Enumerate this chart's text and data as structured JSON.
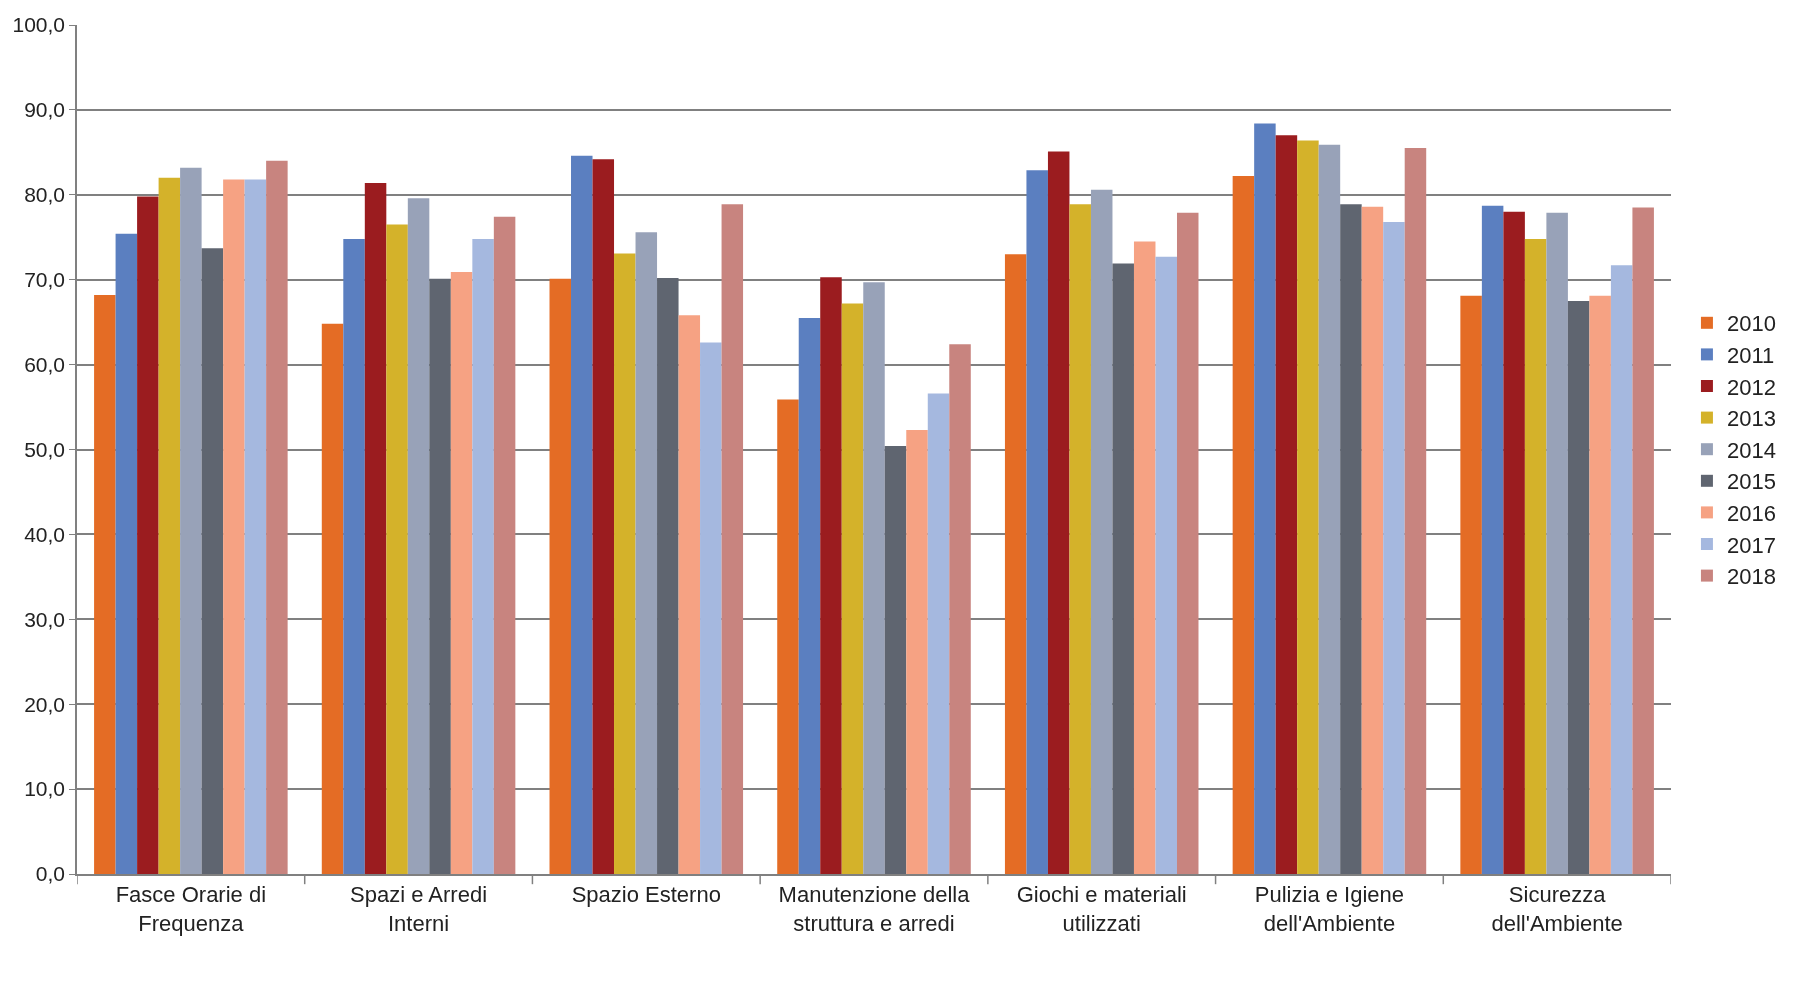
{
  "chart_data": {
    "type": "bar",
    "categories": [
      "Fasce Orarie di Frequenza",
      "Spazi e Arredi Interni",
      "Spazio Esterno",
      "Manutenzione della struttura e arredi",
      "Giochi e materiali utilizzati",
      "Pulizia e Igiene dell'Ambiente",
      "Sicurezza dell'Ambiente"
    ],
    "series": [
      {
        "name": "2010",
        "color": "#e46c25",
        "values": [
          68.2,
          64.8,
          70.1,
          55.9,
          73.0,
          82.2,
          68.1
        ]
      },
      {
        "name": "2011",
        "color": "#5b7fc0",
        "values": [
          75.4,
          74.8,
          84.6,
          65.5,
          82.9,
          88.4,
          78.7
        ]
      },
      {
        "name": "2012",
        "color": "#9b1c1f",
        "values": [
          79.8,
          81.4,
          84.2,
          70.3,
          85.1,
          87.0,
          78.0
        ]
      },
      {
        "name": "2013",
        "color": "#d4b22a",
        "values": [
          82.0,
          76.5,
          73.1,
          67.2,
          78.9,
          86.4,
          74.8
        ]
      },
      {
        "name": "2014",
        "color": "#98a2b8",
        "values": [
          83.2,
          79.6,
          75.6,
          69.7,
          80.6,
          85.9,
          77.9
        ]
      },
      {
        "name": "2015",
        "color": "#5f6570",
        "values": [
          73.7,
          70.1,
          70.2,
          50.4,
          71.9,
          78.9,
          67.5
        ]
      },
      {
        "name": "2016",
        "color": "#f6a283",
        "values": [
          81.8,
          70.9,
          65.8,
          52.3,
          74.5,
          78.6,
          68.1
        ]
      },
      {
        "name": "2017",
        "color": "#a5b8df",
        "values": [
          81.8,
          74.8,
          62.6,
          56.6,
          72.7,
          76.8,
          71.7
        ]
      },
      {
        "name": "2018",
        "color": "#c8847f",
        "values": [
          84.0,
          77.4,
          78.9,
          62.4,
          77.9,
          85.5,
          78.5
        ]
      }
    ],
    "ylim": [
      0,
      100
    ],
    "yticks": [
      {
        "value": 0,
        "label": "0,0"
      },
      {
        "value": 10,
        "label": "10,0"
      },
      {
        "value": 20,
        "label": "20,0"
      },
      {
        "value": 30,
        "label": "30,0"
      },
      {
        "value": 40,
        "label": "40,0"
      },
      {
        "value": 50,
        "label": "50,0"
      },
      {
        "value": 60,
        "label": "60,0"
      },
      {
        "value": 70,
        "label": "70,0"
      },
      {
        "value": 80,
        "label": "80,0"
      },
      {
        "value": 90,
        "label": "90,0"
      },
      {
        "value": 100,
        "label": "100,0"
      }
    ],
    "grid": "y",
    "legend": "right"
  }
}
